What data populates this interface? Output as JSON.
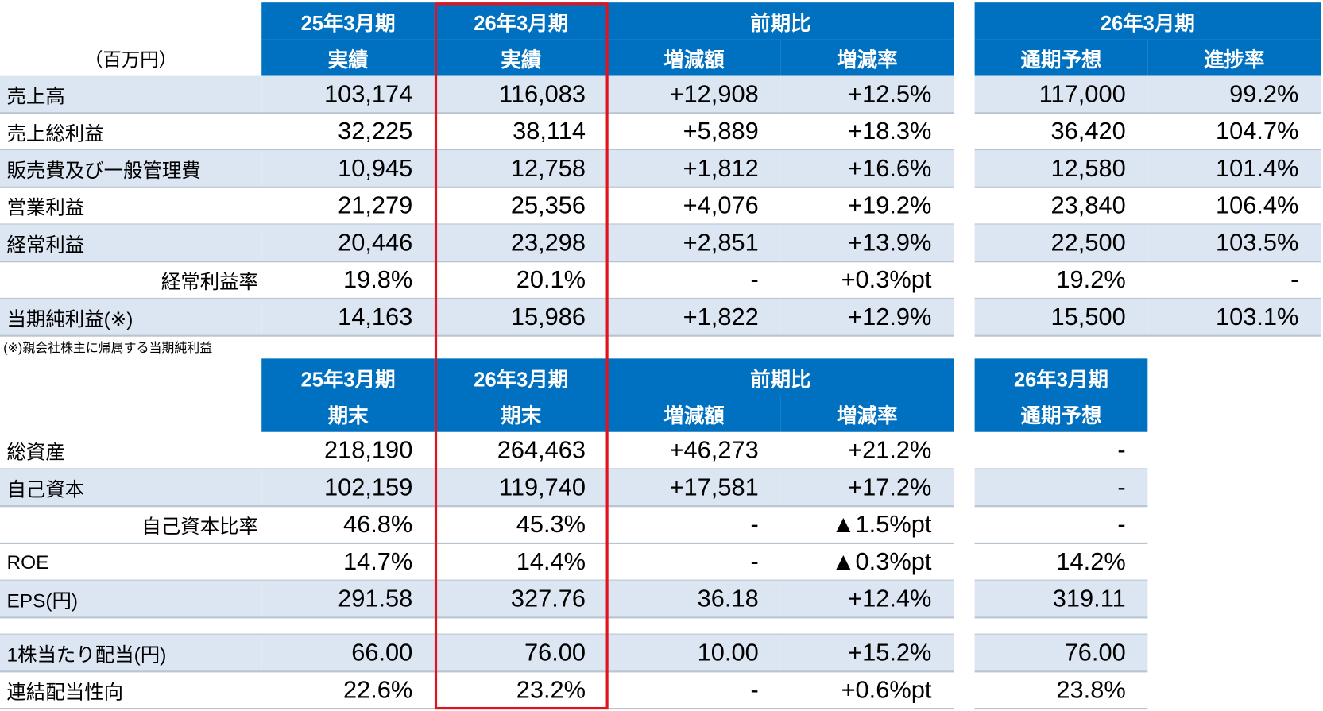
{
  "top": {
    "unit": "（百万円）",
    "header_top": [
      "25年3月期",
      "26年3月期",
      "前期比",
      "26年3月期"
    ],
    "header_sub": [
      "実績",
      "実績",
      "増減額",
      "増減率",
      "通期予想",
      "進捗率"
    ],
    "rows": [
      [
        "売上高",
        "103,174",
        "116,083",
        "+12,908",
        "+12.5%",
        "117,000",
        "99.2%"
      ],
      [
        "売上総利益",
        "32,225",
        "38,114",
        "+5,889",
        "+18.3%",
        "36,420",
        "104.7%"
      ],
      [
        "販売費及び一般管理費",
        "10,945",
        "12,758",
        "+1,812",
        "+16.6%",
        "12,580",
        "101.4%"
      ],
      [
        "営業利益",
        "21,279",
        "25,356",
        "+4,076",
        "+19.2%",
        "23,840",
        "106.4%"
      ],
      [
        "経常利益",
        "20,446",
        "23,298",
        "+2,851",
        "+13.9%",
        "22,500",
        "103.5%"
      ],
      [
        "経常利益率",
        "19.8%",
        "20.1%",
        "-",
        "+0.3%pt",
        "19.2%",
        "-"
      ],
      [
        "当期純利益(※)",
        "14,163",
        "15,986",
        "+1,822",
        "+12.9%",
        "15,500",
        "103.1%"
      ]
    ],
    "footnote": "(※)親会社株主に帰属する当期純利益"
  },
  "bottom": {
    "header_top": [
      "25年3月期",
      "26年3月期",
      "前期比",
      "26年3月期"
    ],
    "header_sub": [
      "期末",
      "期末",
      "増減額",
      "増減率",
      "通期予想"
    ],
    "rows": [
      [
        "総資産",
        "218,190",
        "264,463",
        "+46,273",
        "+21.2%",
        "-"
      ],
      [
        "自己資本",
        "102,159",
        "119,740",
        "+17,581",
        "+17.2%",
        "-"
      ],
      [
        "自己資本比率",
        "46.8%",
        "45.3%",
        "-",
        "▲1.5%pt",
        "-"
      ],
      [
        "ROE",
        "14.7%",
        "14.4%",
        "-",
        "▲0.3%pt",
        "14.2%"
      ],
      [
        "EPS(円)",
        "291.58",
        "327.76",
        "36.18",
        "+12.4%",
        "319.11"
      ],
      [
        "1株当たり配当(円)",
        "66.00",
        "76.00",
        "10.00",
        "+15.2%",
        "76.00"
      ],
      [
        "連結配当性向",
        "22.6%",
        "23.2%",
        "-",
        "+0.6%pt",
        "23.8%"
      ]
    ]
  }
}
